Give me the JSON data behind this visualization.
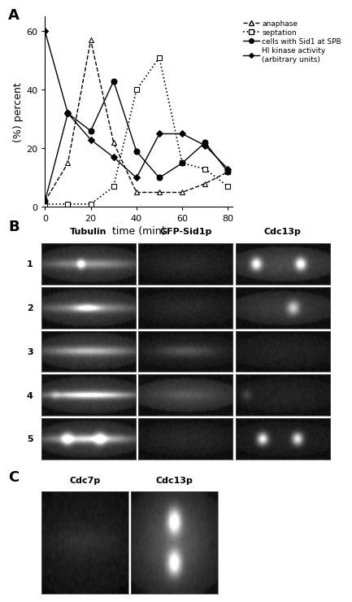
{
  "anaphase_x": [
    0,
    10,
    20,
    30,
    40,
    50,
    60,
    70,
    80
  ],
  "anaphase_y": [
    2,
    15,
    57,
    22,
    5,
    5,
    5,
    8,
    12
  ],
  "septation_x": [
    0,
    10,
    20,
    30,
    40,
    50,
    60,
    70,
    80
  ],
  "septation_y": [
    1,
    1,
    1,
    7,
    40,
    51,
    15,
    13,
    7
  ],
  "sid1spb_x": [
    0,
    10,
    20,
    30,
    40,
    50,
    60,
    70,
    80
  ],
  "sid1spb_y": [
    2,
    32,
    26,
    43,
    19,
    10,
    15,
    22,
    12
  ],
  "hikinase_x": [
    0,
    10,
    20,
    30,
    40,
    50,
    60,
    70,
    80
  ],
  "hikinase_y": [
    60,
    32,
    23,
    17,
    10,
    25,
    25,
    21,
    13
  ],
  "xlabel": "time (min)",
  "ylabel": "(%) percent",
  "ylim": [
    0,
    65
  ],
  "xlim": [
    0,
    82
  ],
  "xticks": [
    0,
    20,
    40,
    60,
    80
  ],
  "yticks": [
    0,
    20,
    40,
    60
  ],
  "panel_A_label": "A",
  "panel_B_label": "B",
  "panel_C_label": "C",
  "legend_anaphase": "anaphase",
  "legend_septation": "septation",
  "legend_sid1": "cells with Sid1 at SPB",
  "legend_hikinase": "HI kinase activity\n(arbitrary units)",
  "row_labels": [
    "1",
    "2",
    "3",
    "4",
    "5"
  ],
  "col_labels_B": [
    "Tubulin",
    "GFP-Sid1p",
    "Cdc13p"
  ],
  "col_labels_C": [
    "Cdc7p",
    "Cdc13p"
  ]
}
